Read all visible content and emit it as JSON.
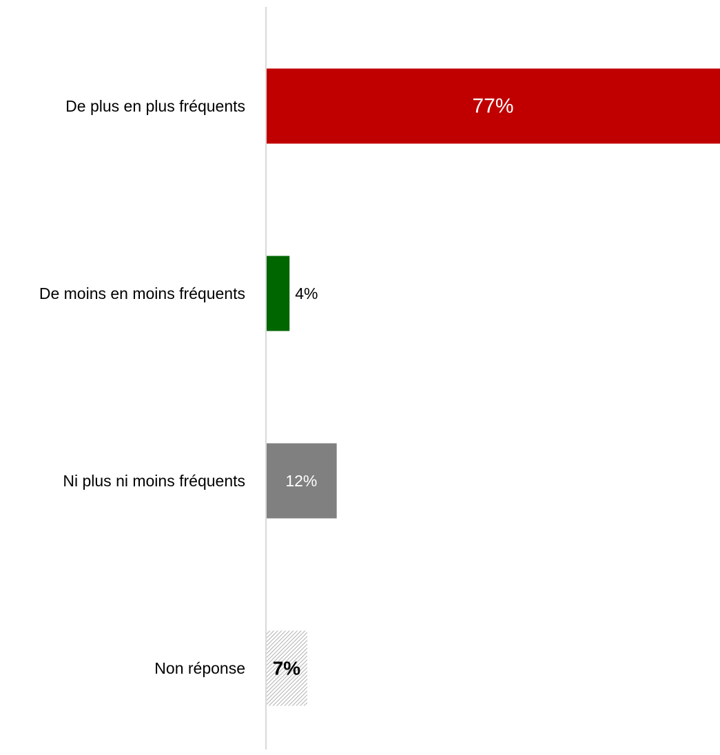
{
  "chart_data": {
    "type": "bar",
    "orientation": "horizontal",
    "title": "",
    "xlabel": "",
    "ylabel": "",
    "xlim": [
      0,
      77
    ],
    "grid": false,
    "legend": "none",
    "categories": [
      "De plus en plus fréquents",
      "De moins en moins fréquents",
      "Ni plus ni moins fréquents",
      "Non réponse"
    ],
    "values": [
      77,
      4,
      12,
      7
    ],
    "data_labels": [
      "77%",
      "4%",
      "12%",
      "7%"
    ],
    "bar_styles": [
      {
        "fill": "#c00000",
        "label_color": "#ffffff",
        "pattern": "solid",
        "label_position": "inside"
      },
      {
        "fill": "#006600",
        "label_color": "#000000",
        "pattern": "solid",
        "label_position": "outside"
      },
      {
        "fill": "#808080",
        "label_color": "#ffffff",
        "pattern": "solid",
        "label_position": "inside"
      },
      {
        "fill": "#bfbfbf",
        "label_color": "#000000",
        "pattern": "hatched",
        "label_position": "inside",
        "label_bold": true
      }
    ],
    "axis_color": "#d9d9d9"
  }
}
